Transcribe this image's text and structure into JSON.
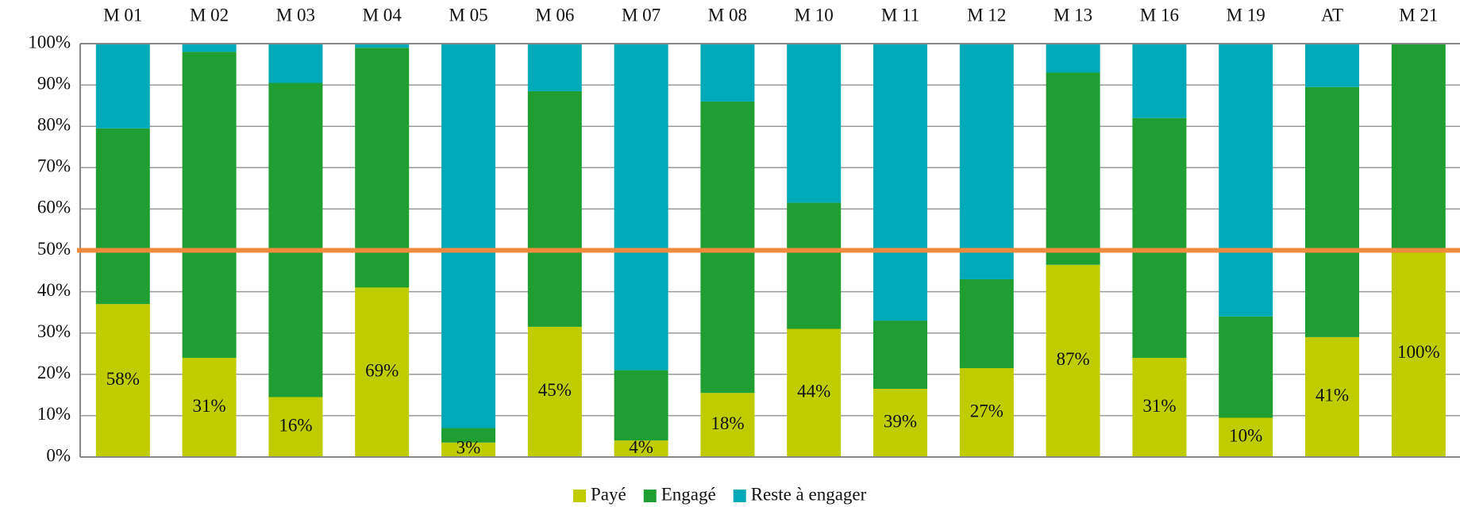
{
  "chart_data": {
    "type": "stacked_bar",
    "categories": [
      "M 01",
      "M 02",
      "M 03",
      "M 04",
      "M 05",
      "M 06",
      "M 07",
      "M 08",
      "M 10",
      "M 11",
      "M 12",
      "M 13",
      "M 16",
      "M 19",
      "AT",
      "M 21"
    ],
    "series": [
      {
        "name": "Payé",
        "color": "#bfcc00",
        "values": [
          37,
          24,
          14.5,
          41,
          3.5,
          31.5,
          4,
          15.5,
          31,
          16.5,
          21.5,
          46.5,
          24,
          9.5,
          29,
          50
        ]
      },
      {
        "name": "Engagé",
        "color": "#1f9e32",
        "values": [
          42.5,
          74,
          76,
          58,
          3.5,
          57,
          17,
          70.5,
          30.5,
          16.5,
          21.5,
          46.5,
          58,
          24.5,
          60.5,
          50
        ]
      },
      {
        "name": "Reste à engager",
        "color": "#00a9b8",
        "values": [
          20.5,
          2,
          9.5,
          1,
          93,
          11.5,
          79,
          14,
          38.5,
          67,
          57,
          7,
          18,
          66,
          10.5,
          0
        ]
      }
    ],
    "bar_labels": [
      "58%",
      "31%",
      "16%",
      "69%",
      "3%",
      "45%",
      "4%",
      "18%",
      "44%",
      "39%",
      "27%",
      "87%",
      "31%",
      "10%",
      "41%",
      "100%"
    ],
    "ylim": [
      0,
      100
    ],
    "yticks": [
      {
        "value": 0,
        "label": "0%"
      },
      {
        "value": 10,
        "label": "10%"
      },
      {
        "value": 20,
        "label": "20%"
      },
      {
        "value": 30,
        "label": "30%"
      },
      {
        "value": 40,
        "label": "40%"
      },
      {
        "value": 50,
        "label": "50%"
      },
      {
        "value": 60,
        "label": "60%"
      },
      {
        "value": 70,
        "label": "70%"
      },
      {
        "value": 80,
        "label": "80%"
      },
      {
        "value": 90,
        "label": "90%"
      },
      {
        "value": 100,
        "label": "100%"
      }
    ],
    "grid": true,
    "reference_line": {
      "value": 50,
      "color": "#f08a3c"
    },
    "legend": "bottom"
  }
}
